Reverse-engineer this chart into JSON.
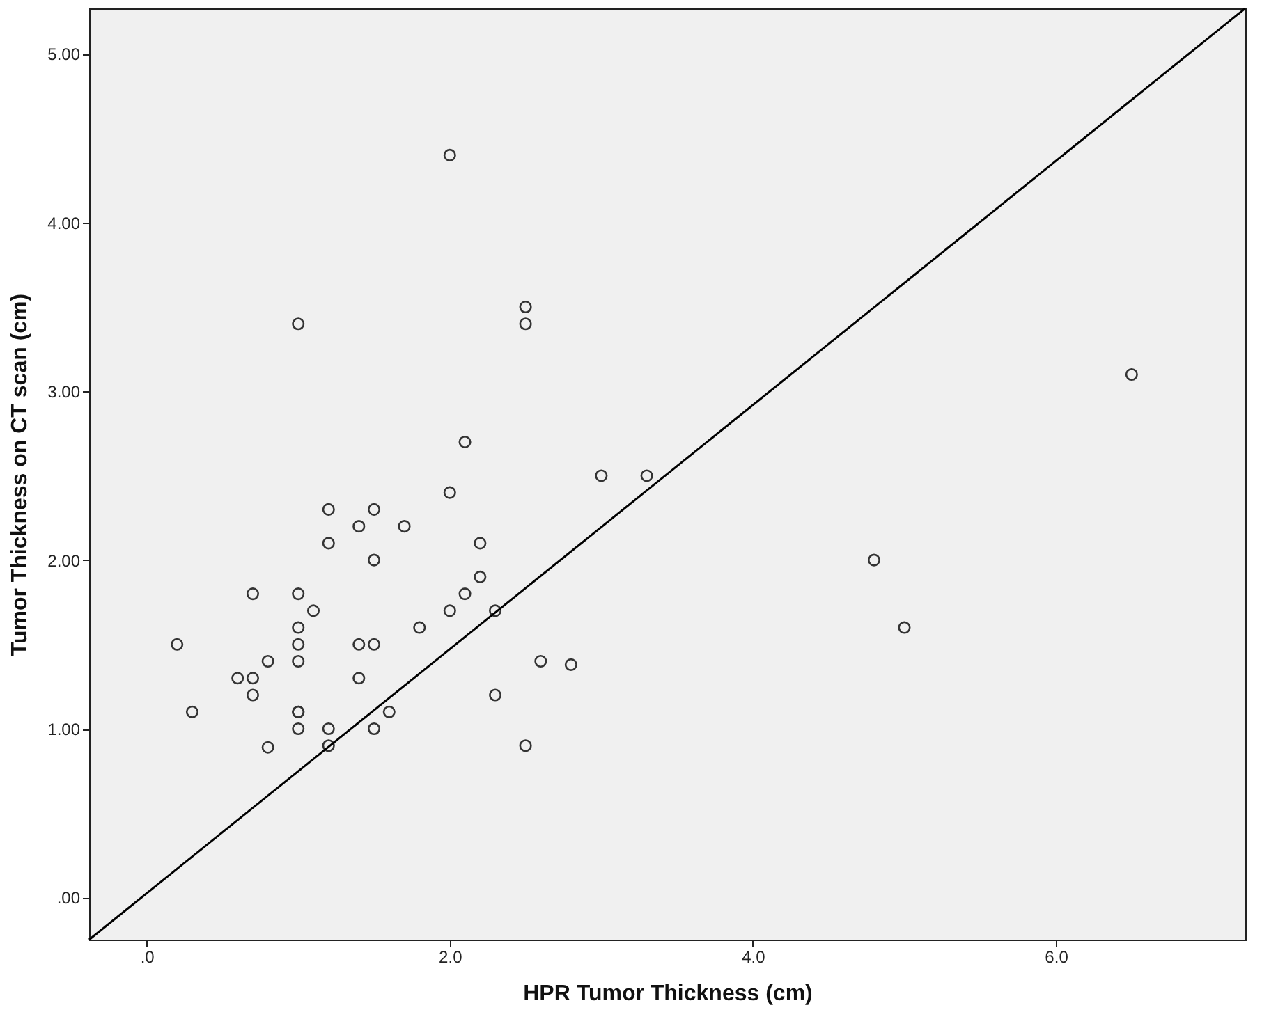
{
  "chart_data": {
    "type": "scatter",
    "xlabel": "HPR Tumor Thickness (cm)",
    "ylabel": "Tumor Thickness on CT scan (cm)",
    "xlim": [
      -0.38,
      7.25
    ],
    "ylim": [
      -0.25,
      5.27
    ],
    "xticks": [
      {
        "value": 0,
        "label": ".0"
      },
      {
        "value": 2,
        "label": "2.0"
      },
      {
        "value": 4,
        "label": "4.0"
      },
      {
        "value": 6,
        "label": "6.0"
      }
    ],
    "yticks": [
      {
        "value": 0,
        "label": ".00"
      },
      {
        "value": 1,
        "label": "1.00"
      },
      {
        "value": 2,
        "label": "2.00"
      },
      {
        "value": 3,
        "label": "3.00"
      },
      {
        "value": 4,
        "label": "4.00"
      },
      {
        "value": 5,
        "label": "5.00"
      }
    ],
    "grid": false,
    "series": [
      {
        "color": "#333333",
        "marker": "circle",
        "x": [
          2.0,
          1.0,
          2.5,
          2.5,
          2.1,
          3.0,
          3.3,
          2.0,
          1.2,
          1.5,
          1.4,
          1.7,
          1.2,
          2.2,
          1.5,
          2.2,
          0.7,
          1.0,
          2.1,
          1.1,
          2.0,
          2.3,
          1.0,
          1.8,
          0.2,
          1.0,
          1.4,
          1.5,
          0.8,
          1.0,
          2.6,
          2.8,
          0.6,
          0.7,
          1.4,
          0.7,
          2.3,
          0.3,
          1.0,
          1.0,
          1.6,
          1.0,
          1.2,
          1.5,
          0.8,
          1.2,
          2.5,
          6.5,
          4.8,
          5.0
        ],
        "values": [
          4.4,
          3.4,
          3.5,
          3.4,
          2.7,
          2.5,
          2.5,
          2.4,
          2.3,
          2.3,
          2.2,
          2.2,
          2.1,
          2.1,
          2.0,
          1.9,
          1.8,
          1.8,
          1.8,
          1.7,
          1.7,
          1.7,
          1.6,
          1.6,
          1.5,
          1.5,
          1.5,
          1.5,
          1.4,
          1.4,
          1.4,
          1.38,
          1.3,
          1.3,
          1.3,
          1.2,
          1.2,
          1.1,
          1.1,
          1.1,
          1.1,
          1.0,
          1.0,
          1.0,
          0.89,
          0.9,
          0.9,
          3.1,
          2.0,
          1.6
        ]
      },
      {
        "type": "line",
        "color": "#000000",
        "line_style": "solid",
        "x": [
          -0.38,
          7.25
        ],
        "values": [
          -0.25,
          5.27
        ]
      }
    ]
  }
}
